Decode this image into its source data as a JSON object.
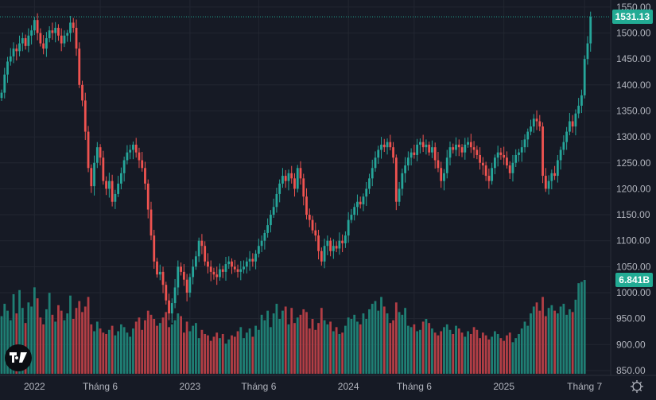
{
  "chart_data": {
    "type": "candlestick",
    "interval": "weekly",
    "price_ticks": [
      850,
      900,
      950,
      1000,
      1050,
      1100,
      1150,
      1200,
      1250,
      1300,
      1350,
      1400,
      1450,
      1500,
      1550
    ],
    "price_tick_labels": [
      "850.00",
      "900.00",
      "950.00",
      "1000.00",
      "1050.00",
      "1100.00",
      "1150.00",
      "1200.00",
      "1250.00",
      "1300.00",
      "1350.00",
      "1400.00",
      "1450.00",
      "1500.00",
      "1550.00"
    ],
    "ylim": [
      850,
      1560
    ],
    "x_labels": [
      {
        "label": "2022",
        "index": 11
      },
      {
        "label": "Tháng 6",
        "index": 33
      },
      {
        "label": "2023",
        "index": 63
      },
      {
        "label": "Tháng 6",
        "index": 86
      },
      {
        "label": "2024",
        "index": 116
      },
      {
        "label": "Tháng 6",
        "index": 138
      },
      {
        "label": "2025",
        "index": 168
      },
      {
        "label": "Tháng 7",
        "index": 195
      }
    ],
    "first_open": 1375,
    "close": [
      1385,
      1420,
      1445,
      1455,
      1470,
      1465,
      1480,
      1490,
      1475,
      1495,
      1505,
      1525,
      1500,
      1480,
      1470,
      1490,
      1505,
      1500,
      1510,
      1495,
      1480,
      1495,
      1500,
      1520,
      1510,
      1470,
      1400,
      1370,
      1310,
      1240,
      1205,
      1250,
      1280,
      1260,
      1215,
      1200,
      1215,
      1175,
      1190,
      1210,
      1230,
      1255,
      1270,
      1275,
      1285,
      1270,
      1255,
      1240,
      1210,
      1160,
      1110,
      1060,
      1035,
      1040,
      1015,
      985,
      960,
      980,
      1010,
      1050,
      1040,
      1025,
      1000,
      1030,
      1050,
      1070,
      1100,
      1090,
      1060,
      1050,
      1040,
      1035,
      1030,
      1045,
      1040,
      1055,
      1060,
      1050,
      1045,
      1040,
      1045,
      1050,
      1060,
      1065,
      1060,
      1075,
      1090,
      1100,
      1115,
      1130,
      1150,
      1165,
      1190,
      1210,
      1225,
      1215,
      1230,
      1220,
      1200,
      1240,
      1220,
      1185,
      1150,
      1140,
      1120,
      1110,
      1080,
      1060,
      1090,
      1100,
      1080,
      1090,
      1085,
      1100,
      1095,
      1110,
      1140,
      1150,
      1165,
      1175,
      1170,
      1185,
      1200,
      1220,
      1240,
      1260,
      1275,
      1285,
      1280,
      1290,
      1280,
      1260,
      1175,
      1200,
      1230,
      1245,
      1260,
      1270,
      1265,
      1285,
      1290,
      1280,
      1285,
      1270,
      1280,
      1255,
      1240,
      1215,
      1230,
      1260,
      1280,
      1275,
      1285,
      1280,
      1270,
      1285,
      1290,
      1280,
      1275,
      1265,
      1250,
      1245,
      1225,
      1215,
      1240,
      1260,
      1270,
      1265,
      1260,
      1245,
      1230,
      1250,
      1265,
      1270,
      1280,
      1295,
      1310,
      1320,
      1335,
      1330,
      1320,
      1225,
      1200,
      1215,
      1230,
      1225,
      1255,
      1275,
      1290,
      1310,
      1330,
      1320,
      1345,
      1360,
      1380,
      1450,
      1480,
      1531.13
    ],
    "volume_billions": [
      4.2,
      5.1,
      4.6,
      3.9,
      5.8,
      4.4,
      6.1,
      4.8,
      3.7,
      5.2,
      4.9,
      6.3,
      5.5,
      4.1,
      3.6,
      4.7,
      5.9,
      4.3,
      3.8,
      5.0,
      4.6,
      3.9,
      4.4,
      5.7,
      4.0,
      4.8,
      5.3,
      4.5,
      4.9,
      5.6,
      3.6,
      3.1,
      3.8,
      3.3,
      3.0,
      2.9,
      3.2,
      3.5,
      2.8,
      3.1,
      3.6,
      3.4,
      3.0,
      2.7,
      3.3,
      3.8,
      4.1,
      3.2,
      3.9,
      4.6,
      4.3,
      4.0,
      3.5,
      3.7,
      4.1,
      4.5,
      3.4,
      3.6,
      3.9,
      4.4,
      4.2,
      3.0,
      3.8,
      3.1,
      3.5,
      3.7,
      2.6,
      3.2,
      2.9,
      2.8,
      2.4,
      2.7,
      3.0,
      2.6,
      2.9,
      2.2,
      2.5,
      2.8,
      2.7,
      3.1,
      3.4,
      2.6,
      3.0,
      3.3,
      2.7,
      3.5,
      3.2,
      4.3,
      3.9,
      4.6,
      3.4,
      4.4,
      5.1,
      4.0,
      4.6,
      4.9,
      3.6,
      4.8,
      3.7,
      4.1,
      4.3,
      4.7,
      4.5,
      3.3,
      4.0,
      3.2,
      3.7,
      4.8,
      3.9,
      3.6,
      3.8,
      3.1,
      3.4,
      2.9,
      3.0,
      3.5,
      4.1,
      4.0,
      4.3,
      3.8,
      3.6,
      4.4,
      4.0,
      4.7,
      5.1,
      5.3,
      4.6,
      5.6,
      4.9,
      4.4,
      3.7,
      3.9,
      5.2,
      4.5,
      4.3,
      4.8,
      3.5,
      3.4,
      3.6,
      3.1,
      3.2,
      3.8,
      4.0,
      3.7,
      3.3,
      3.0,
      2.8,
      3.1,
      3.4,
      3.6,
      3.2,
      2.9,
      3.5,
      3.3,
      3.0,
      2.7,
      3.1,
      2.9,
      3.4,
      3.2,
      2.6,
      3.0,
      2.8,
      2.5,
      2.7,
      3.1,
      2.9,
      2.6,
      2.4,
      2.8,
      3.0,
      2.3,
      2.6,
      2.9,
      3.3,
      3.8,
      3.5,
      4.4,
      4.9,
      5.2,
      4.6,
      5.6,
      4.2,
      4.8,
      5.0,
      4.6,
      4.4,
      4.9,
      5.1,
      4.3,
      4.7,
      4.5,
      5.4,
      6.6,
      6.7,
      6.841
    ],
    "last_price_label": "1531.13",
    "last_volume_label": "6.841B",
    "colors": {
      "up": "#26a69a",
      "down": "#ef5350",
      "vol_up": "#1f7f74",
      "vol_down": "#b23e45",
      "grid": "#222631",
      "bg": "#161a25",
      "label_bg": "#22ab94"
    }
  },
  "icons": {
    "logo": "tradingview-logo",
    "settings": "gear-icon"
  },
  "logo_text": "TV"
}
